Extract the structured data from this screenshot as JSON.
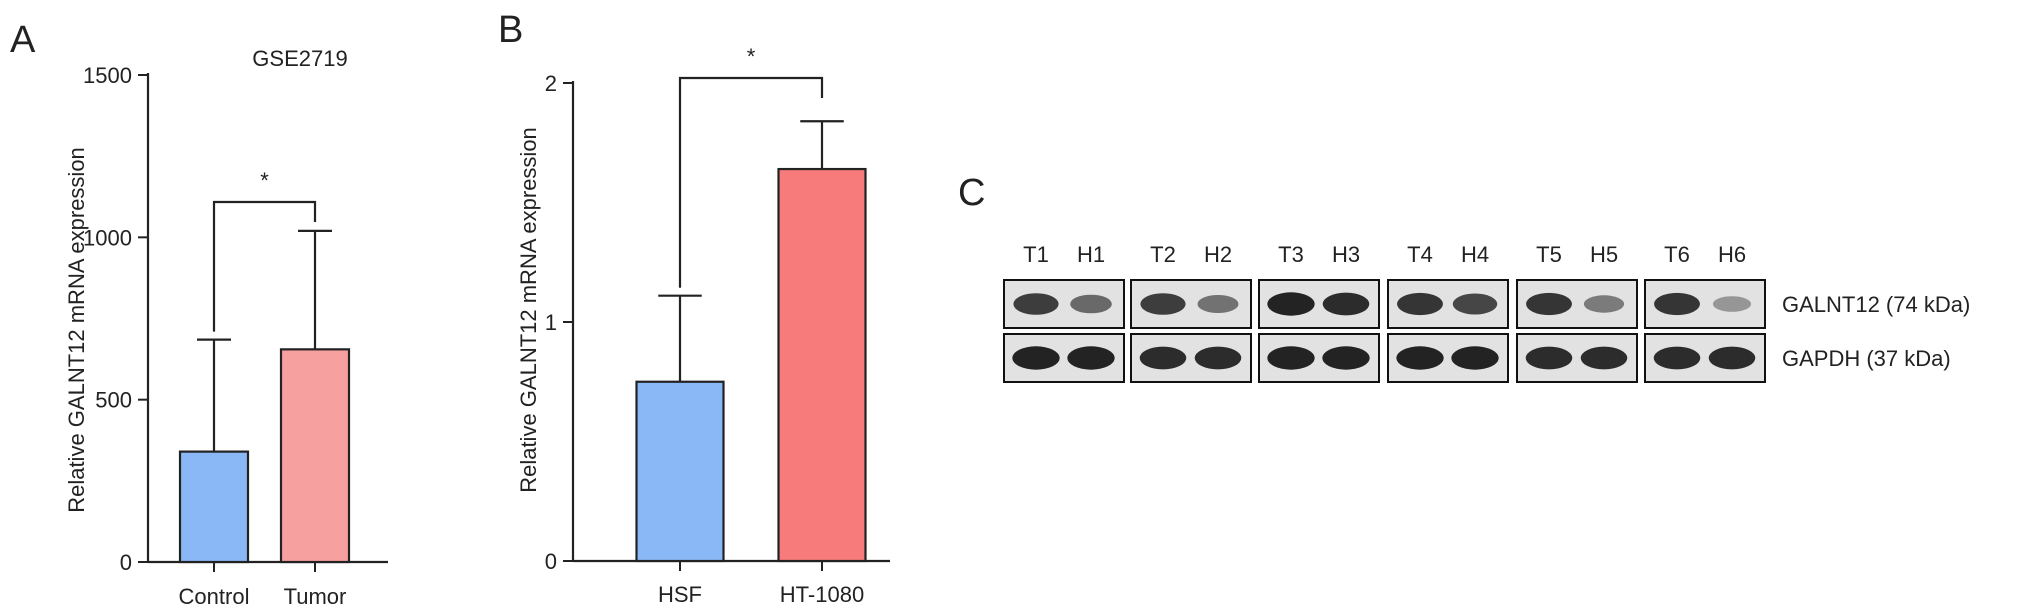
{
  "panels": [
    {
      "label": "A"
    },
    {
      "label": "B"
    },
    {
      "label": "C"
    }
  ],
  "chart_data": [
    {
      "type": "bar",
      "title": "GSE2719",
      "ylabel": "Relative GALNT12 mRNA expression",
      "xlabel": "",
      "ylim": [
        0,
        1500
      ],
      "yticks": [
        "0",
        "500",
        "1000",
        "1500"
      ],
      "categories": [
        "Control",
        "Tumor"
      ],
      "values": [
        340,
        655
      ],
      "errors": [
        345,
        365
      ],
      "colors": [
        "#8ab8f6",
        "#f7a0a0"
      ],
      "significance": "*"
    },
    {
      "type": "bar",
      "title": "",
      "ylabel": "Relative GALNT12 mRNA expression",
      "xlabel": "",
      "ylim": [
        0,
        2
      ],
      "yticks": [
        "0",
        "1",
        "2"
      ],
      "categories": [
        "HSF",
        "HT-1080"
      ],
      "values": [
        0.75,
        1.64
      ],
      "errors": [
        0.36,
        0.2
      ],
      "colors": [
        "#8ab8f6",
        "#f77b7b"
      ],
      "significance": "*"
    }
  ],
  "blot": {
    "lane_labels": [
      "T1",
      "H1",
      "T2",
      "H2",
      "T3",
      "H3",
      "T4",
      "H4",
      "T5",
      "H5",
      "T6",
      "H6"
    ],
    "rows": [
      {
        "label": "GALNT12 (74 kDa)",
        "intensities": [
          0.8,
          0.55,
          0.8,
          0.5,
          0.95,
          0.9,
          0.85,
          0.75,
          0.85,
          0.45,
          0.85,
          0.3
        ]
      },
      {
        "label": "GAPDH (37 kDa)",
        "intensities": [
          0.95,
          0.95,
          0.9,
          0.9,
          0.95,
          0.95,
          0.95,
          0.95,
          0.9,
          0.9,
          0.9,
          0.9
        ]
      }
    ]
  }
}
